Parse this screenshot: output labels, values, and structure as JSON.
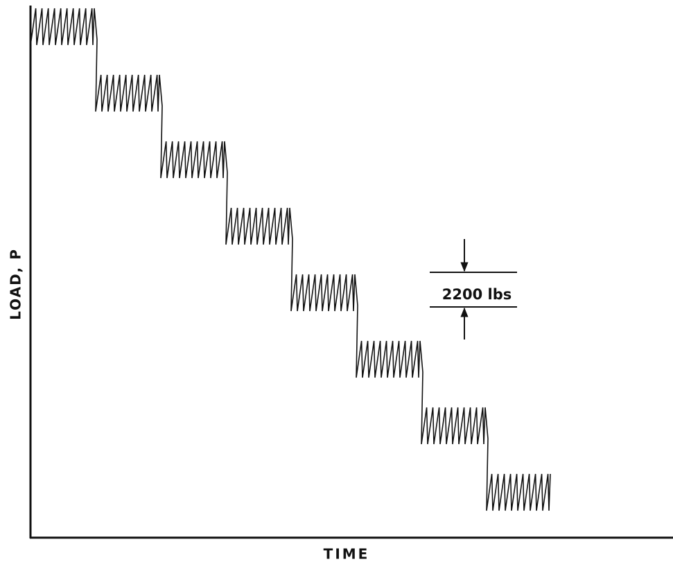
{
  "diagram": {
    "y_axis_label": "LOAD, P",
    "x_axis_label": "TIME",
    "annotation": "2200 lbs"
  }
}
